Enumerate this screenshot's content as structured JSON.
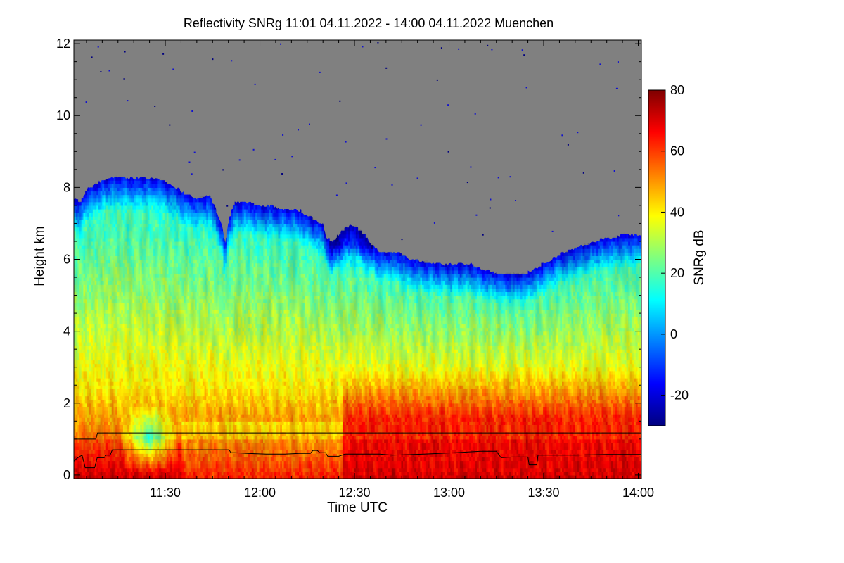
{
  "chart_data": {
    "type": "heatmap",
    "title": "Reflectivity SNRg   11:01 04.11.2022 - 14:00 04.11.2022 Muenchen",
    "xlabel": "Time UTC",
    "ylabel": "Height km",
    "x_range_minutes_utc": [
      661,
      841
    ],
    "x_ticks": [
      {
        "label": "11:30",
        "minute": 690
      },
      {
        "label": "12:00",
        "minute": 720
      },
      {
        "label": "12:30",
        "minute": 750
      },
      {
        "label": "13:00",
        "minute": 780
      },
      {
        "label": "13:30",
        "minute": 810
      },
      {
        "label": "14:00",
        "minute": 840
      }
    ],
    "ylim": [
      -0.1,
      12.1
    ],
    "y_ticks": [
      0,
      2,
      4,
      6,
      8,
      10,
      12
    ],
    "colorbar": {
      "label": "SNRg dB",
      "range": [
        -30,
        80
      ],
      "ticks": [
        -20,
        0,
        20,
        40,
        60,
        80
      ],
      "colormap": [
        "#00007f",
        "#0000ff",
        "#007fff",
        "#00ffff",
        "#7fff7f",
        "#ffff00",
        "#ff7f00",
        "#ff0000",
        "#7f0000"
      ]
    },
    "no_data_color": "#808080",
    "echo_top_km": [
      [
        661,
        7.7
      ],
      [
        663,
        7.6
      ],
      [
        665,
        7.95
      ],
      [
        667,
        8.05
      ],
      [
        670,
        8.2
      ],
      [
        673,
        8.3
      ],
      [
        676,
        8.3
      ],
      [
        680,
        8.25
      ],
      [
        684,
        8.3
      ],
      [
        688,
        8.25
      ],
      [
        692,
        8.1
      ],
      [
        696,
        7.85
      ],
      [
        700,
        7.7
      ],
      [
        704,
        7.8
      ],
      [
        706,
        7.4
      ],
      [
        708,
        7.0
      ],
      [
        709,
        6.4
      ],
      [
        710,
        7.1
      ],
      [
        712,
        7.6
      ],
      [
        716,
        7.6
      ],
      [
        720,
        7.5
      ],
      [
        724,
        7.5
      ],
      [
        728,
        7.4
      ],
      [
        732,
        7.4
      ],
      [
        736,
        7.2
      ],
      [
        740,
        6.95
      ],
      [
        741,
        6.6
      ],
      [
        743,
        6.5
      ],
      [
        746,
        6.8
      ],
      [
        749,
        7.0
      ],
      [
        752,
        6.8
      ],
      [
        755,
        6.5
      ],
      [
        758,
        6.2
      ],
      [
        761,
        6.25
      ],
      [
        764,
        6.2
      ],
      [
        768,
        6.0
      ],
      [
        772,
        5.95
      ],
      [
        776,
        5.9
      ],
      [
        781,
        5.85
      ],
      [
        786,
        5.9
      ],
      [
        792,
        5.7
      ],
      [
        798,
        5.6
      ],
      [
        804,
        5.6
      ],
      [
        810,
        5.9
      ],
      [
        816,
        6.2
      ],
      [
        822,
        6.4
      ],
      [
        830,
        6.6
      ],
      [
        836,
        6.7
      ],
      [
        841,
        6.7
      ]
    ],
    "series": [
      {
        "name": "upper line",
        "points": [
          [
            661,
            1.0
          ],
          [
            668,
            1.0
          ],
          [
            668.5,
            1.17
          ],
          [
            700,
            1.17
          ],
          [
            800,
            1.17
          ],
          [
            841,
            1.17
          ]
        ]
      },
      {
        "name": "lower line",
        "points": [
          [
            661,
            0.38
          ],
          [
            661.8,
            0.45
          ],
          [
            662.6,
            0.5
          ],
          [
            663.6,
            0.55
          ],
          [
            664.2,
            0.35
          ],
          [
            664.6,
            0.2
          ],
          [
            665.4,
            0.2
          ],
          [
            667.6,
            0.2
          ],
          [
            668.4,
            0.48
          ],
          [
            670.6,
            0.48
          ],
          [
            671.2,
            0.55
          ],
          [
            672.5,
            0.55
          ],
          [
            673.2,
            0.7
          ],
          [
            700,
            0.7
          ],
          [
            710.2,
            0.7
          ],
          [
            710.8,
            0.62
          ],
          [
            712,
            0.62
          ],
          [
            716,
            0.6
          ],
          [
            722,
            0.58
          ],
          [
            728,
            0.58
          ],
          [
            732.4,
            0.6
          ],
          [
            736,
            0.6
          ],
          [
            736.8,
            0.68
          ],
          [
            738.2,
            0.68
          ],
          [
            739,
            0.62
          ],
          [
            740.8,
            0.62
          ],
          [
            741.5,
            0.52
          ],
          [
            745,
            0.52
          ],
          [
            747,
            0.58
          ],
          [
            758,
            0.58
          ],
          [
            762,
            0.55
          ],
          [
            772,
            0.58
          ],
          [
            782,
            0.62
          ],
          [
            790,
            0.66
          ],
          [
            795,
            0.66
          ],
          [
            796.5,
            0.48
          ],
          [
            800,
            0.5
          ],
          [
            805,
            0.5
          ],
          [
            805.4,
            0.28
          ],
          [
            807.8,
            0.28
          ],
          [
            808.2,
            0.55
          ],
          [
            820,
            0.55
          ],
          [
            830,
            0.57
          ],
          [
            841,
            0.57
          ]
        ]
      }
    ]
  }
}
